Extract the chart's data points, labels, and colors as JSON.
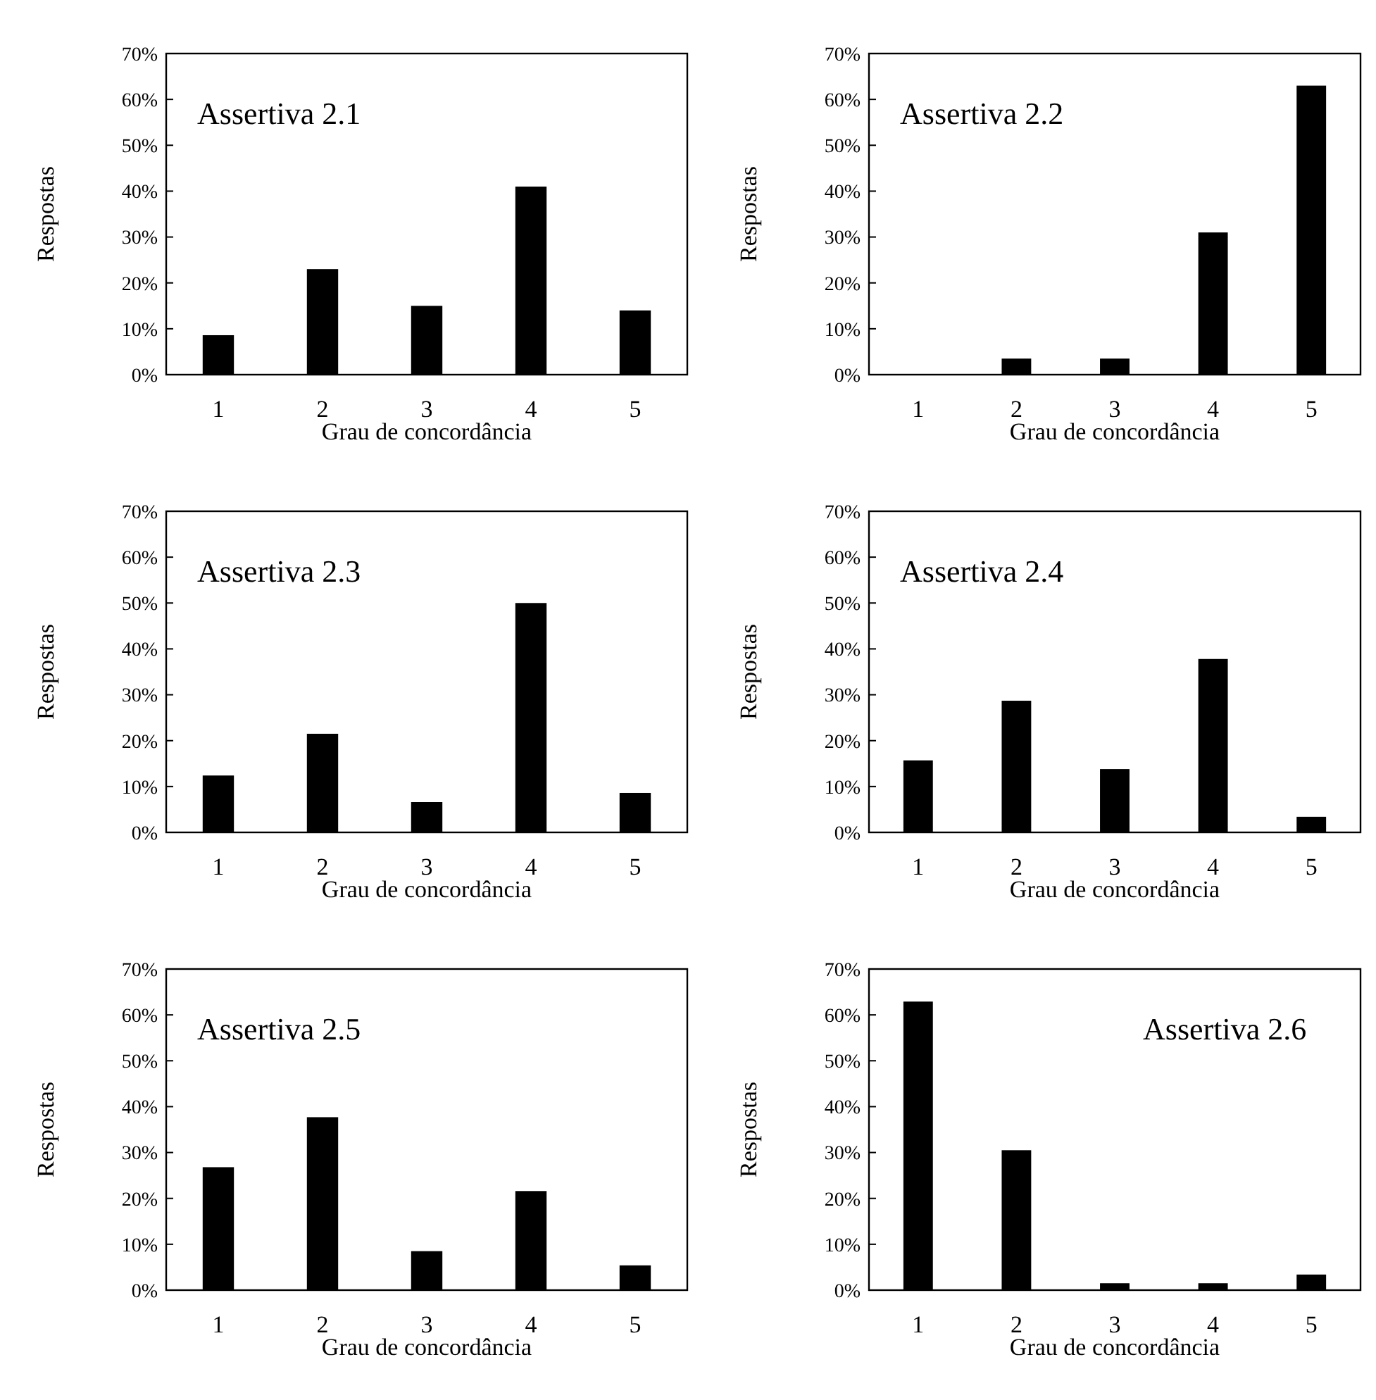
{
  "chart_data": [
    {
      "type": "bar",
      "title": "Assertiva 2.1",
      "xlabel": "Grau de concordância",
      "ylabel": "Respostas",
      "categories": [
        "1",
        "2",
        "3",
        "4",
        "5"
      ],
      "values": [
        8.6,
        23,
        15,
        41,
        14
      ],
      "color": "#000000",
      "ylim": [
        0,
        70
      ],
      "yticks": [
        {
          "value": 0,
          "label": "0%"
        },
        {
          "value": 10,
          "label": "10%"
        },
        {
          "value": 20,
          "label": "20%"
        },
        {
          "value": 30,
          "label": "30%"
        },
        {
          "value": 40,
          "label": "40%"
        },
        {
          "value": 50,
          "label": "50%"
        },
        {
          "value": 60,
          "label": "60%"
        },
        {
          "value": 70,
          "label": "70%"
        }
      ]
    },
    {
      "type": "bar",
      "title": "Assertiva 2.2",
      "xlabel": "Grau de concordância",
      "ylabel": "Respostas",
      "categories": [
        "1",
        "2",
        "3",
        "4",
        "5"
      ],
      "values": [
        0,
        3.5,
        3.5,
        31,
        63
      ],
      "color": "#000000",
      "ylim": [
        0,
        70
      ],
      "yticks": [
        {
          "value": 0,
          "label": "0%"
        },
        {
          "value": 10,
          "label": "10%"
        },
        {
          "value": 20,
          "label": "20%"
        },
        {
          "value": 30,
          "label": "30%"
        },
        {
          "value": 40,
          "label": "40%"
        },
        {
          "value": 50,
          "label": "50%"
        },
        {
          "value": 60,
          "label": "60%"
        },
        {
          "value": 70,
          "label": "70%"
        }
      ]
    },
    {
      "type": "bar",
      "title": "Assertiva 2.3",
      "xlabel": "Grau de concordância",
      "ylabel": "Respostas",
      "categories": [
        "1",
        "2",
        "3",
        "4",
        "5"
      ],
      "values": [
        12.4,
        21.5,
        6.6,
        50,
        8.6
      ],
      "color": "#000000",
      "ylim": [
        0,
        70
      ],
      "yticks": [
        {
          "value": 0,
          "label": "0%"
        },
        {
          "value": 10,
          "label": "10%"
        },
        {
          "value": 20,
          "label": "20%"
        },
        {
          "value": 30,
          "label": "30%"
        },
        {
          "value": 40,
          "label": "40%"
        },
        {
          "value": 50,
          "label": "50%"
        },
        {
          "value": 60,
          "label": "60%"
        },
        {
          "value": 70,
          "label": "70%"
        }
      ]
    },
    {
      "type": "bar",
      "title": "Assertiva 2.4",
      "xlabel": "Grau de concordância",
      "ylabel": "Respostas",
      "categories": [
        "1",
        "2",
        "3",
        "4",
        "5"
      ],
      "values": [
        15.7,
        28.7,
        13.8,
        37.8,
        3.4
      ],
      "color": "#000000",
      "ylim": [
        0,
        70
      ],
      "yticks": [
        {
          "value": 0,
          "label": "0%"
        },
        {
          "value": 10,
          "label": "10%"
        },
        {
          "value": 20,
          "label": "20%"
        },
        {
          "value": 30,
          "label": "30%"
        },
        {
          "value": 40,
          "label": "40%"
        },
        {
          "value": 50,
          "label": "50%"
        },
        {
          "value": 60,
          "label": "60%"
        },
        {
          "value": 70,
          "label": "70%"
        }
      ]
    },
    {
      "type": "bar",
      "title": "Assertiva 2.5",
      "xlabel": "Grau de concordância",
      "ylabel": "Respostas",
      "categories": [
        "1",
        "2",
        "3",
        "4",
        "5"
      ],
      "values": [
        26.8,
        37.7,
        8.5,
        21.6,
        5.4
      ],
      "color": "#000000",
      "ylim": [
        0,
        70
      ],
      "yticks": [
        {
          "value": 0,
          "label": "0%"
        },
        {
          "value": 10,
          "label": "10%"
        },
        {
          "value": 20,
          "label": "20%"
        },
        {
          "value": 30,
          "label": "30%"
        },
        {
          "value": 40,
          "label": "40%"
        },
        {
          "value": 50,
          "label": "50%"
        },
        {
          "value": 60,
          "label": "60%"
        },
        {
          "value": 70,
          "label": "70%"
        }
      ]
    },
    {
      "type": "bar",
      "title": "Assertiva 2.6",
      "xlabel": "Grau de concordância",
      "ylabel": "Respostas",
      "categories": [
        "1",
        "2",
        "3",
        "4",
        "5"
      ],
      "values": [
        62.9,
        30.5,
        1.5,
        1.5,
        3.4
      ],
      "color": "#000000",
      "ylim": [
        0,
        70
      ],
      "yticks": [
        {
          "value": 0,
          "label": "0%"
        },
        {
          "value": 10,
          "label": "10%"
        },
        {
          "value": 20,
          "label": "20%"
        },
        {
          "value": 30,
          "label": "30%"
        },
        {
          "value": 40,
          "label": "40%"
        },
        {
          "value": 50,
          "label": "50%"
        },
        {
          "value": 60,
          "label": "60%"
        },
        {
          "value": 70,
          "label": "70%"
        }
      ]
    }
  ]
}
